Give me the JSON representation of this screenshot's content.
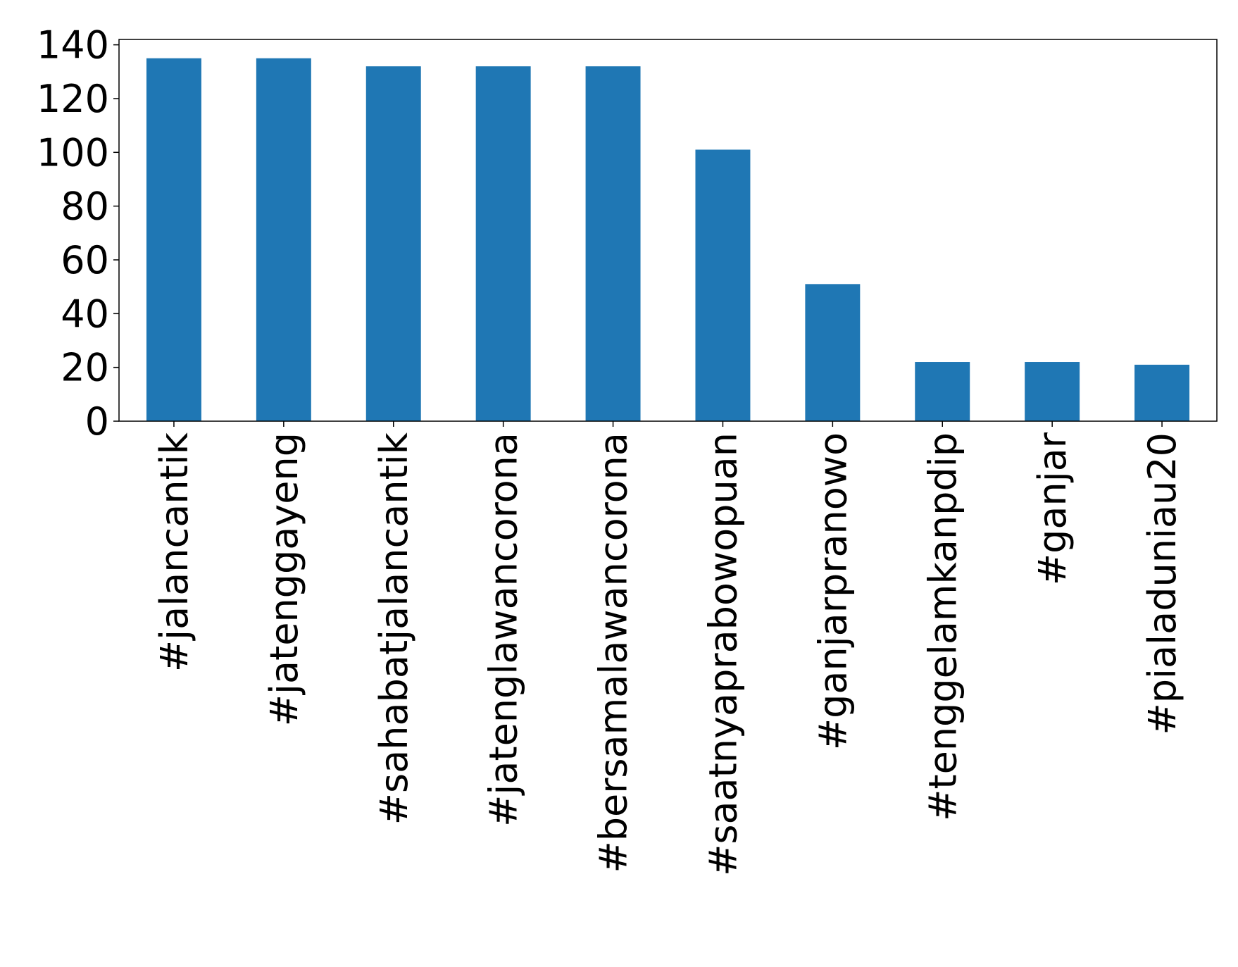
{
  "chart_data": {
    "type": "bar",
    "categories": [
      "#jalancantik",
      "#jatenggayeng",
      "#sahabatjalancantik",
      "#jatenglawancorona",
      "#bersamalawancorona",
      "#saatnyaprabowopuan",
      "#ganjarpranowo",
      "#tenggelamkanpdip",
      "#ganjar",
      "#pialaduniau20"
    ],
    "values": [
      135,
      135,
      132,
      132,
      132,
      101,
      51,
      22,
      22,
      21
    ],
    "color": "#1f77b4",
    "ylim": [
      0,
      142
    ],
    "yticks": [
      0,
      20,
      40,
      60,
      80,
      100,
      120,
      140
    ],
    "grid": false
  }
}
